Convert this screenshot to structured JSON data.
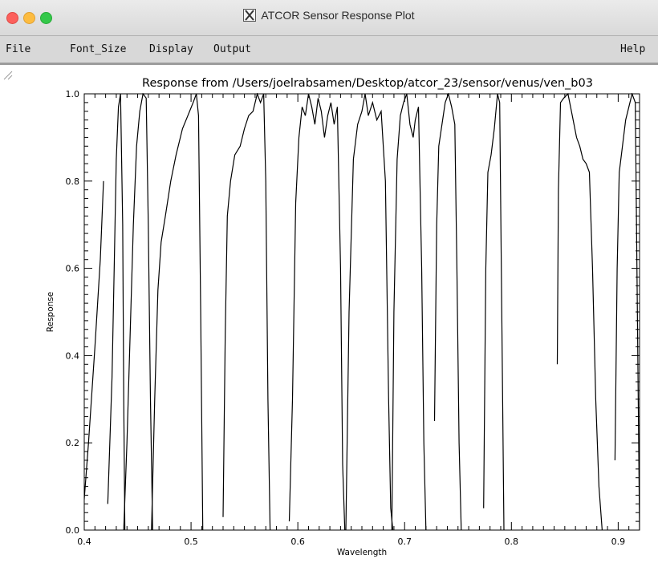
{
  "window": {
    "title": "ATCOR Sensor Response Plot",
    "traffic_lights": {
      "close": "#fc605c",
      "minimize": "#fdbc40",
      "maximize": "#34c84a"
    }
  },
  "menu": {
    "file": "File",
    "font_size": "Font_Size",
    "display": "Display",
    "output": "Output",
    "help": "Help"
  },
  "chart_data": {
    "type": "line",
    "title": "Response from /Users/joelrabsamen/Desktop/atcor_23/sensor/venus/ven_b03",
    "xlabel": "Wavelength",
    "ylabel": "Response",
    "xlim": [
      0.4,
      0.92
    ],
    "ylim": [
      0.0,
      1.0
    ],
    "x_ticks": [
      "0.4",
      "0.5",
      "0.6",
      "0.7",
      "0.8",
      "0.9"
    ],
    "y_ticks": [
      "0.0",
      "0.2",
      "0.4",
      "0.6",
      "0.8",
      "1.0"
    ],
    "grid": false,
    "line_color": "#000000",
    "series": [
      {
        "x": [
          0.399,
          0.404,
          0.41,
          0.415,
          0.418
        ],
        "y": [
          0.04,
          0.2,
          0.42,
          0.62,
          0.8
        ]
      },
      {
        "x": [
          0.422,
          0.426,
          0.428,
          0.43,
          0.432,
          0.434,
          0.436,
          0.437,
          0.438
        ],
        "y": [
          0.06,
          0.35,
          0.6,
          0.85,
          0.97,
          1.0,
          0.7,
          0.3,
          0.0
        ]
      },
      {
        "x": [
          0.437,
          0.44,
          0.443,
          0.446,
          0.449,
          0.452,
          0.455,
          0.458,
          0.46,
          0.462,
          0.464
        ],
        "y": [
          0.0,
          0.2,
          0.45,
          0.7,
          0.88,
          0.96,
          1.0,
          0.99,
          0.7,
          0.3,
          0.0
        ]
      },
      {
        "x": [
          0.463,
          0.466,
          0.469,
          0.472,
          0.476,
          0.481,
          0.486,
          0.492,
          0.497,
          0.502,
          0.505,
          0.507,
          0.509,
          0.511
        ],
        "y": [
          0.0,
          0.3,
          0.55,
          0.66,
          0.72,
          0.8,
          0.86,
          0.92,
          0.95,
          0.98,
          1.0,
          0.95,
          0.5,
          0.0
        ]
      },
      {
        "x": [
          0.53,
          0.532,
          0.534,
          0.537,
          0.541,
          0.546,
          0.55,
          0.554,
          0.558,
          0.562,
          0.565,
          0.568,
          0.57,
          0.572,
          0.574
        ],
        "y": [
          0.03,
          0.45,
          0.72,
          0.8,
          0.86,
          0.88,
          0.92,
          0.95,
          0.96,
          1.0,
          0.98,
          1.0,
          0.8,
          0.3,
          0.0
        ]
      },
      {
        "x": [
          0.592,
          0.595,
          0.598,
          0.601,
          0.604,
          0.607,
          0.61,
          0.613,
          0.616,
          0.619,
          0.622,
          0.625,
          0.628,
          0.631,
          0.634,
          0.637,
          0.64,
          0.642,
          0.644
        ],
        "y": [
          0.02,
          0.3,
          0.75,
          0.9,
          0.97,
          0.95,
          1.0,
          0.97,
          0.93,
          0.99,
          0.96,
          0.9,
          0.95,
          0.98,
          0.93,
          0.97,
          0.6,
          0.15,
          0.0
        ]
      },
      {
        "x": [
          0.645,
          0.648,
          0.652,
          0.656,
          0.66,
          0.663,
          0.666,
          0.67,
          0.674,
          0.678,
          0.682,
          0.685,
          0.687,
          0.689
        ],
        "y": [
          0.0,
          0.5,
          0.85,
          0.93,
          0.96,
          1.0,
          0.95,
          0.98,
          0.94,
          0.96,
          0.8,
          0.3,
          0.05,
          0.0
        ]
      },
      {
        "x": [
          0.688,
          0.69,
          0.693,
          0.696,
          0.699,
          0.702,
          0.705,
          0.708,
          0.71,
          0.713,
          0.716,
          0.718,
          0.72
        ],
        "y": [
          0.0,
          0.5,
          0.85,
          0.95,
          0.98,
          1.0,
          0.93,
          0.9,
          0.94,
          0.97,
          0.6,
          0.2,
          0.0
        ]
      },
      {
        "x": [
          0.728,
          0.73,
          0.732,
          0.735,
          0.738,
          0.741,
          0.744,
          0.747,
          0.749,
          0.751,
          0.753
        ],
        "y": [
          0.25,
          0.7,
          0.88,
          0.93,
          0.98,
          1.0,
          0.97,
          0.93,
          0.6,
          0.2,
          0.0
        ]
      },
      {
        "x": [
          0.774,
          0.776,
          0.778,
          0.781,
          0.784,
          0.787,
          0.789,
          0.791,
          0.793
        ],
        "y": [
          0.05,
          0.6,
          0.82,
          0.86,
          0.92,
          1.0,
          0.98,
          0.5,
          0.0
        ]
      },
      {
        "x": [
          0.843,
          0.844,
          0.846,
          0.849,
          0.853,
          0.857,
          0.861,
          0.864,
          0.867,
          0.87,
          0.873,
          0.876,
          0.879,
          0.882,
          0.885
        ],
        "y": [
          0.38,
          0.78,
          0.98,
          0.99,
          1.0,
          0.95,
          0.9,
          0.88,
          0.85,
          0.84,
          0.82,
          0.6,
          0.3,
          0.1,
          0.0
        ]
      },
      {
        "x": [
          0.897,
          0.899,
          0.901,
          0.904,
          0.907,
          0.91,
          0.913,
          0.916,
          0.918,
          0.92
        ],
        "y": [
          0.16,
          0.6,
          0.82,
          0.88,
          0.94,
          0.97,
          1.0,
          0.98,
          0.5,
          0.0
        ]
      }
    ]
  }
}
